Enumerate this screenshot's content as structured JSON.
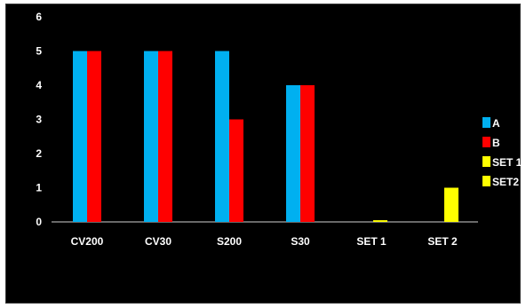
{
  "chart_data": {
    "type": "bar",
    "title": "",
    "xlabel": "",
    "ylabel": "",
    "ylim": [
      0,
      6
    ],
    "yticks": [
      0,
      1,
      2,
      3,
      4,
      5,
      6
    ],
    "grid": false,
    "legend_position": "right",
    "background": "#000000",
    "categories": [
      "CV200",
      "CV30",
      "S200",
      "S30",
      "SET 1",
      "SET 2"
    ],
    "series": [
      {
        "name": "A",
        "color": "#00B0F0",
        "values": [
          5,
          5,
          5,
          4,
          0,
          0
        ]
      },
      {
        "name": "B",
        "color": "#FF0000",
        "values": [
          5,
          5,
          3,
          4,
          0,
          0
        ]
      },
      {
        "name": "SET 1",
        "color": "#FFFF00",
        "values": [
          0,
          0,
          0,
          0,
          0.05,
          0
        ]
      },
      {
        "name": "SET2",
        "color": "#FFFF00",
        "values": [
          0,
          0,
          0,
          0,
          0,
          1
        ]
      }
    ]
  }
}
